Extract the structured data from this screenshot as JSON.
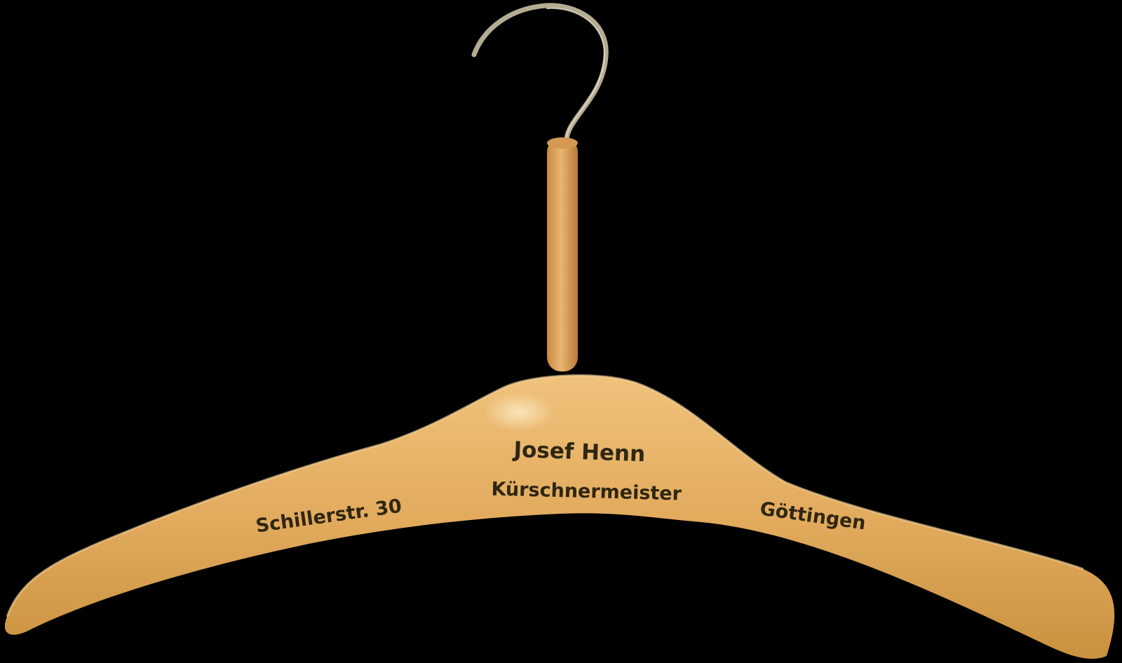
{
  "colors": {
    "background": "#000000",
    "wood": "#e0aa5c",
    "wood_dark": "#c78e43",
    "wood_light": "#f2c987",
    "print": "#2f2612",
    "hook": "#b3ab92"
  },
  "hanger": {
    "name_line": "Josef  Henn",
    "trade_line": "Kürschnermeister",
    "street_line": "Schillerstr. 30",
    "city_line": "Göttingen"
  }
}
